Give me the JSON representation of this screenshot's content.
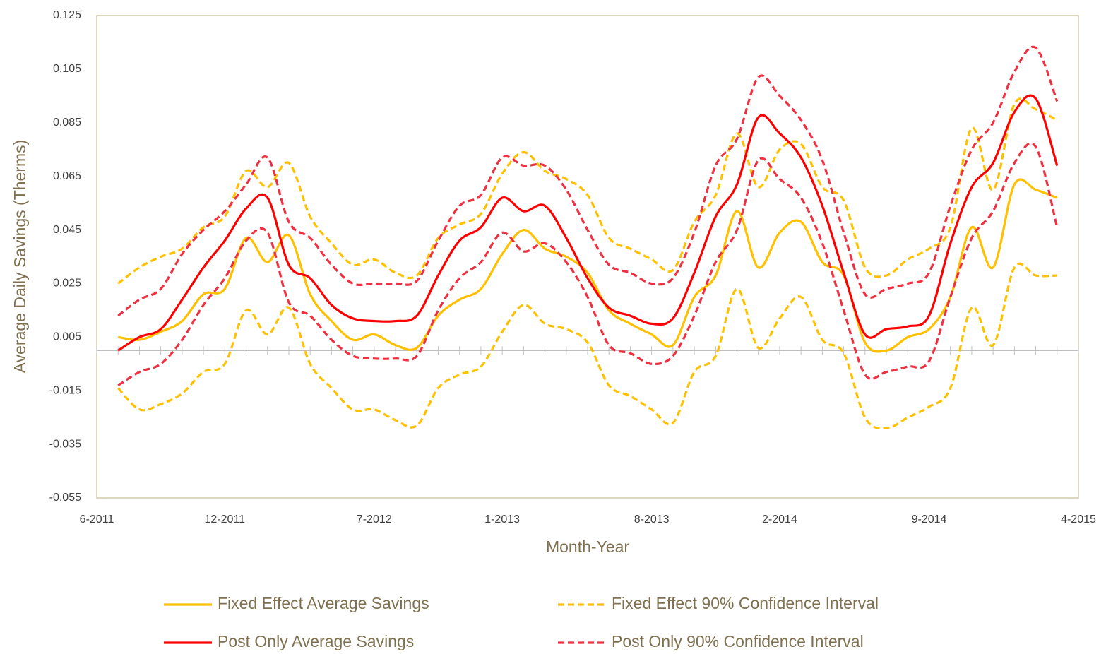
{
  "chart_data": {
    "type": "line",
    "x_label": "Month-Year",
    "y_label": "Average Daily Savings (Therms)",
    "categories": [
      "6-2011",
      null,
      null,
      null,
      null,
      null,
      "12-2011",
      null,
      null,
      null,
      null,
      null,
      null,
      "7-2012",
      null,
      null,
      null,
      null,
      null,
      "1-2013",
      null,
      null,
      null,
      null,
      null,
      null,
      "8-2013",
      null,
      null,
      null,
      null,
      null,
      "2-2014",
      null,
      null,
      null,
      null,
      null,
      null,
      "9-2014",
      null,
      null,
      null,
      null,
      null,
      null,
      "4-2015"
    ],
    "ylim": [
      -0.055,
      0.125
    ],
    "yticks": [
      -0.055,
      -0.035,
      -0.015,
      0.005,
      0.025,
      0.045,
      0.065,
      0.085,
      0.105,
      0.125
    ],
    "legend": "bottom",
    "series": [
      {
        "name": "Fixed Effect Average Savings",
        "color": "#ffc000",
        "dashed": false,
        "values": [
          null,
          0.005,
          0.004,
          0.007,
          0.011,
          0.021,
          0.023,
          0.042,
          0.033,
          0.043,
          0.021,
          0.011,
          0.004,
          0.006,
          0.002,
          0.001,
          0.013,
          0.019,
          0.023,
          0.036,
          0.045,
          0.038,
          0.035,
          0.029,
          0.015,
          0.01,
          0.006,
          0.002,
          0.02,
          0.028,
          0.052,
          0.031,
          0.044,
          0.048,
          0.033,
          0.028,
          0.003,
          0.0,
          0.005,
          0.008,
          0.02,
          0.046,
          0.031,
          0.062,
          0.06,
          0.057,
          null
        ]
      },
      {
        "name": "Fixed Effect 90% Confidence Interval",
        "color": "#ffc000",
        "dashed": true,
        "upper": [
          null,
          0.025,
          0.031,
          0.035,
          0.038,
          0.046,
          0.05,
          0.067,
          0.061,
          0.07,
          0.05,
          0.04,
          0.032,
          0.034,
          0.029,
          0.028,
          0.042,
          0.047,
          0.051,
          0.066,
          0.074,
          0.067,
          0.064,
          0.058,
          0.042,
          0.038,
          0.034,
          0.03,
          0.048,
          0.058,
          0.081,
          0.061,
          0.075,
          0.077,
          0.061,
          0.056,
          0.031,
          0.028,
          0.034,
          0.038,
          0.046,
          0.083,
          0.06,
          0.092,
          0.09,
          0.086,
          null
        ],
        "lower": [
          null,
          -0.014,
          -0.022,
          -0.02,
          -0.016,
          -0.008,
          -0.005,
          0.015,
          0.006,
          0.016,
          -0.005,
          -0.014,
          -0.022,
          -0.022,
          -0.026,
          -0.028,
          -0.014,
          -0.009,
          -0.006,
          0.007,
          0.017,
          0.01,
          0.008,
          0.003,
          -0.013,
          -0.017,
          -0.022,
          -0.027,
          -0.008,
          -0.002,
          0.023,
          0.001,
          0.012,
          0.02,
          0.004,
          -0.001,
          -0.025,
          -0.029,
          -0.025,
          -0.021,
          -0.014,
          0.016,
          0.002,
          0.031,
          0.028,
          0.028,
          null
        ]
      },
      {
        "name": "Post Only Average Savings",
        "color": "#ff0000",
        "dashed": false,
        "values": [
          null,
          0.0,
          0.005,
          0.008,
          0.019,
          0.031,
          0.041,
          0.053,
          0.057,
          0.032,
          0.027,
          0.017,
          0.012,
          0.011,
          0.011,
          0.013,
          0.028,
          0.041,
          0.046,
          0.057,
          0.052,
          0.054,
          0.042,
          0.027,
          0.016,
          0.013,
          0.01,
          0.012,
          0.029,
          0.05,
          0.062,
          0.087,
          0.081,
          0.072,
          0.054,
          0.029,
          0.006,
          0.008,
          0.009,
          0.013,
          0.04,
          0.061,
          0.07,
          0.089,
          0.094,
          0.069,
          null
        ]
      },
      {
        "name": "Post Only 90% Confidence Interval",
        "color": "#f03040",
        "dashed": true,
        "upper": [
          null,
          0.013,
          0.019,
          0.023,
          0.036,
          0.045,
          0.052,
          0.062,
          0.072,
          0.048,
          0.042,
          0.032,
          0.025,
          0.025,
          0.025,
          0.026,
          0.041,
          0.054,
          0.058,
          0.072,
          0.069,
          0.069,
          0.06,
          0.045,
          0.032,
          0.029,
          0.025,
          0.027,
          0.044,
          0.069,
          0.079,
          0.102,
          0.095,
          0.086,
          0.071,
          0.044,
          0.021,
          0.023,
          0.025,
          0.029,
          0.054,
          0.075,
          0.085,
          0.104,
          0.113,
          0.093,
          null
        ],
        "lower": [
          null,
          -0.013,
          -0.008,
          -0.005,
          0.004,
          0.017,
          0.027,
          0.041,
          0.044,
          0.018,
          0.013,
          0.004,
          -0.002,
          -0.003,
          -0.003,
          -0.002,
          0.015,
          0.027,
          0.033,
          0.044,
          0.037,
          0.04,
          0.033,
          0.02,
          0.002,
          -0.001,
          -0.005,
          -0.002,
          0.013,
          0.033,
          0.045,
          0.071,
          0.064,
          0.057,
          0.04,
          0.015,
          -0.009,
          -0.008,
          -0.006,
          -0.004,
          0.02,
          0.042,
          0.052,
          0.07,
          0.076,
          0.046,
          null
        ]
      }
    ]
  }
}
